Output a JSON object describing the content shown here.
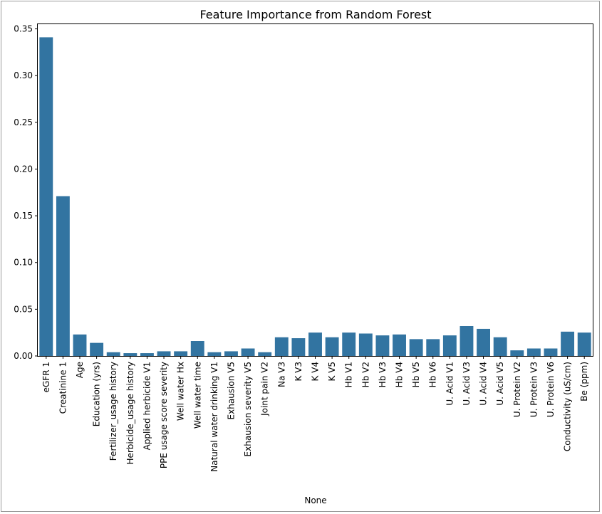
{
  "chart_data": {
    "type": "bar",
    "title": "Feature Importance from Random Forest",
    "xlabel": "None",
    "ylabel": "",
    "ylim": [
      0,
      0.355
    ],
    "yticks": [
      "0.00",
      "0.05",
      "0.10",
      "0.15",
      "0.20",
      "0.25",
      "0.30",
      "0.35"
    ],
    "bar_color": "#3274a1",
    "categories": [
      "eGFR 1",
      "Creatinine 1",
      "Age",
      "Education (yrs)",
      "Fertilizer_usage  history",
      "Herbicide_usage history",
      "Applied herbicide V1",
      "PPE usage score severity",
      "Well water Hx",
      "Well water time",
      "Natural water drinking V1",
      "Exhausion V5",
      "Exhausion severity V5",
      "Joint pain V2",
      "Na V3",
      "K V3",
      "K V4",
      "K V5",
      "Hb V1",
      "Hb V2",
      "Hb V3",
      "Hb V4",
      "Hb V5",
      "Hb V6",
      "U. Acid V1",
      "U. Acid V3",
      "U. Acid V4",
      "U. Acid V5",
      "U. Protein V2",
      "U. Protein V3",
      "U. Protein V6",
      "Conductivity (uS/cm)",
      "Be (ppm)"
    ],
    "values": [
      0.341,
      0.171,
      0.023,
      0.014,
      0.004,
      0.003,
      0.003,
      0.005,
      0.005,
      0.016,
      0.004,
      0.005,
      0.008,
      0.004,
      0.02,
      0.019,
      0.025,
      0.02,
      0.025,
      0.024,
      0.022,
      0.023,
      0.018,
      0.018,
      0.022,
      0.032,
      0.029,
      0.02,
      0.006,
      0.008,
      0.008,
      0.026,
      0.025
    ]
  }
}
